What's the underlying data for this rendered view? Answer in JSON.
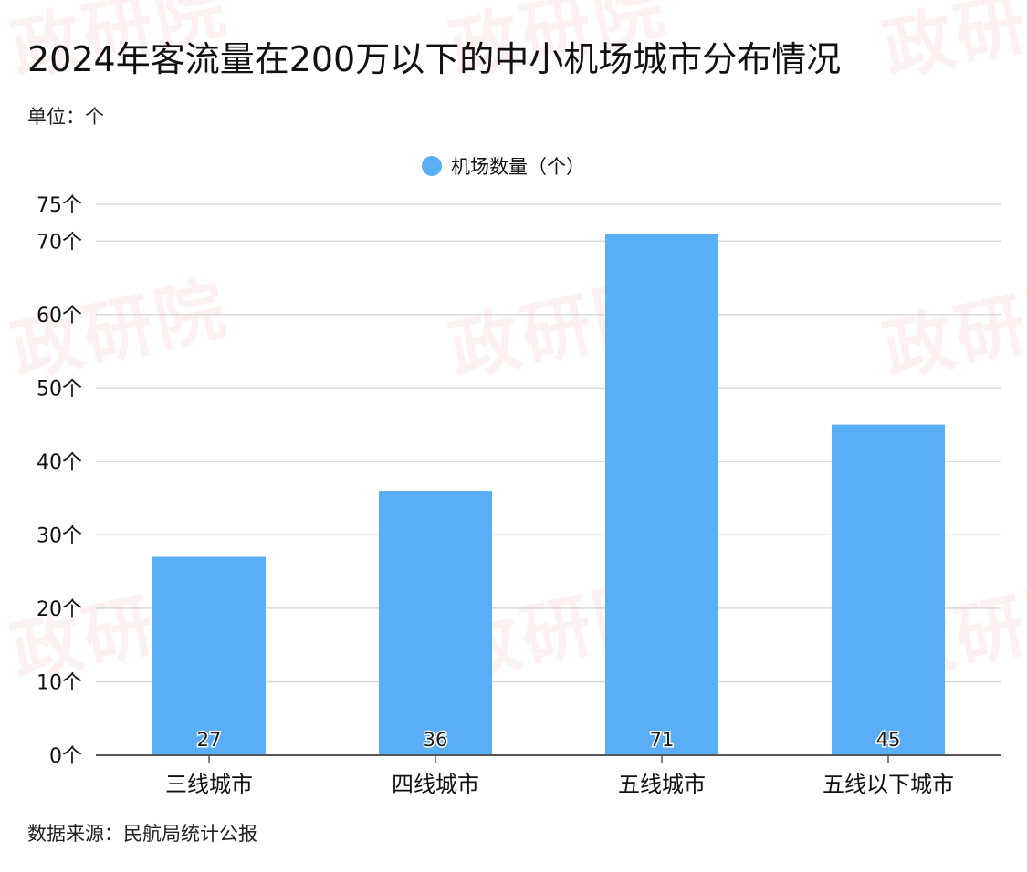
{
  "title": "2024年客流量在200万以下的中小机场城市分布情况",
  "unit_label": "单位：个",
  "source": "数据来源：民航局统计公报",
  "watermark_text": "政研院",
  "colors": {
    "bar": "#5aaef5",
    "grid": "#d9d9d9",
    "axis": "#555555",
    "text": "#111111"
  },
  "chart_data": {
    "type": "bar",
    "categories": [
      "三线城市",
      "四线城市",
      "五线城市",
      "五线以下城市"
    ],
    "series": [
      {
        "name": "机场数量（个）",
        "values": [
          27,
          36,
          71,
          45
        ]
      }
    ],
    "y_ticks": [
      "0个",
      "10个",
      "20个",
      "30个",
      "40个",
      "50个",
      "60个",
      "70个",
      "75个"
    ],
    "y_tick_values": [
      0,
      10,
      20,
      30,
      40,
      50,
      60,
      70,
      75
    ],
    "ylim": [
      0,
      75
    ],
    "grid": true,
    "legend_position": "top-center",
    "data_labels": [
      "27",
      "36",
      "71",
      "45"
    ]
  }
}
